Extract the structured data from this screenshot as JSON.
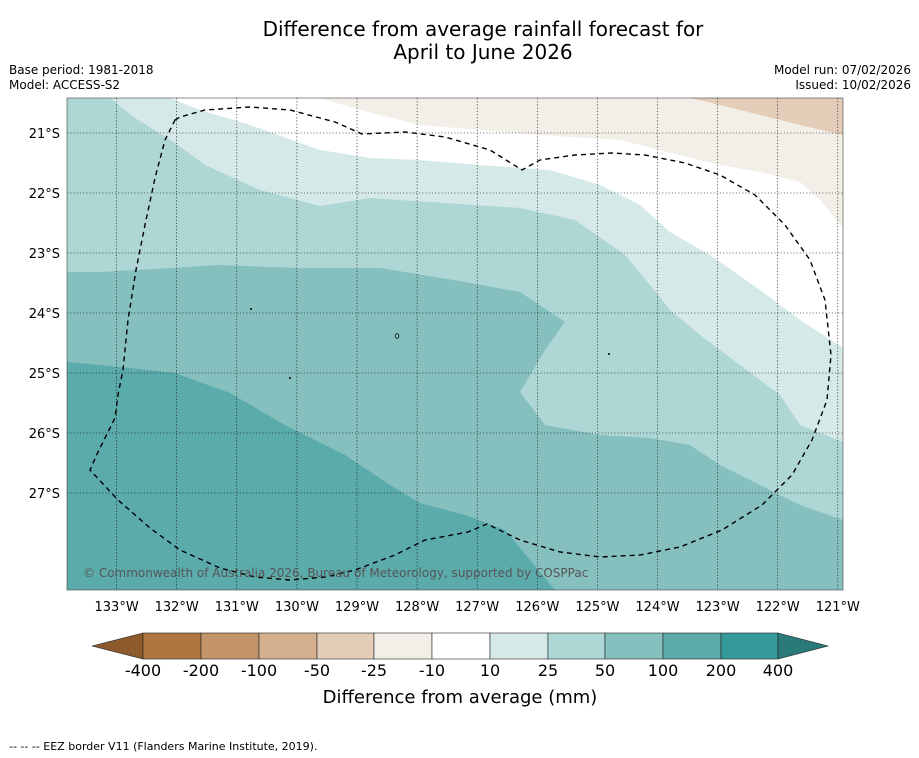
{
  "title": {
    "line1": "Difference from average rainfall forecast for",
    "line2": "April to June 2026"
  },
  "meta": {
    "base_period": "Base period: 1981-2018",
    "model": "Model: ACCESS-S2",
    "model_run": "Model run: 07/02/2026",
    "issued": "Issued: 10/02/2026"
  },
  "map": {
    "lat_labels": [
      "21°S",
      "22°S",
      "23°S",
      "24°S",
      "25°S",
      "26°S",
      "27°S"
    ],
    "lon_labels": [
      "133°W",
      "132°W",
      "131°W",
      "130°W",
      "129°W",
      "128°W",
      "127°W",
      "126°W",
      "125°W",
      "124°W",
      "123°W",
      "122°W",
      "121°W"
    ],
    "copyright": "© Commonwealth of Australia 2026, Bureau of Meteorology, supported by COSPPac",
    "colors": {
      "lt400": "#8c5a2b",
      "m400_m200": "#ad773f",
      "m200_m100": "#c39469",
      "m100_m50": "#d4b08f",
      "m50_m25": "#e3cdb9",
      "m25_m10": "#f2efe9",
      "m10_10": "#ffffff",
      "p10_25": "#d5e9e8",
      "p25_50": "#aed6d5",
      "p50_100": "#85c0bf",
      "p100_200": "#5cabab",
      "p200_400": "#359999",
      "gt400": "#2a7a7a"
    }
  },
  "colorbar": {
    "tick_labels": [
      "-400",
      "-200",
      "-100",
      "-50",
      "-25",
      "-10",
      "10",
      "25",
      "50",
      "100",
      "200",
      "400"
    ],
    "title": "Difference from average (mm)"
  },
  "footer": "--  --  -- EEZ border V11 (Flanders Marine Institute, 2019)."
}
